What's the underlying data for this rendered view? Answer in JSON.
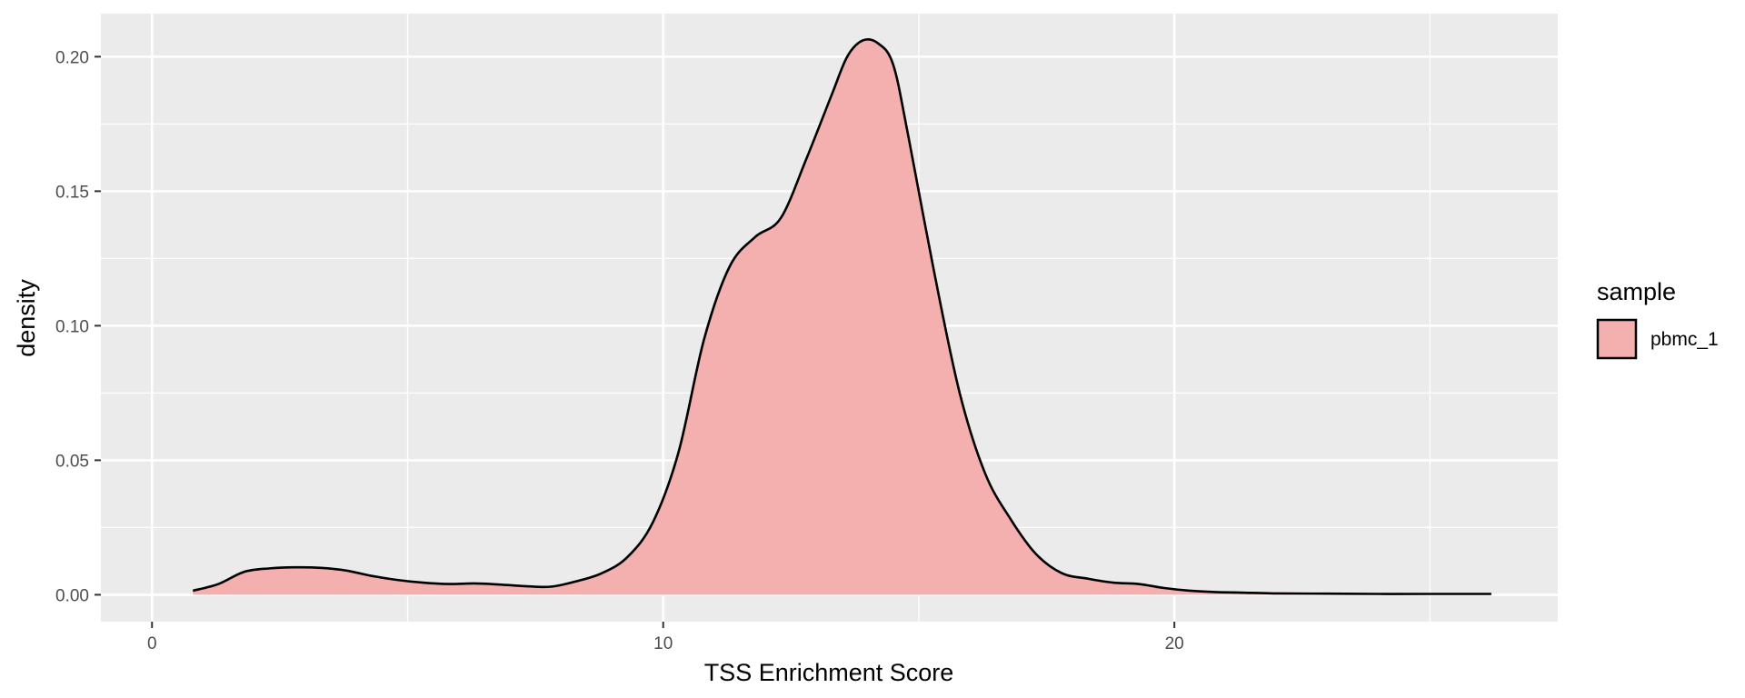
{
  "chart_data": {
    "type": "area",
    "subtype": "density",
    "title": "",
    "xlabel": "TSS Enrichment Score",
    "ylabel": "density",
    "xlim": [
      -1,
      27.5
    ],
    "ylim": [
      -0.01,
      0.216
    ],
    "x_ticks": [
      0,
      10,
      20
    ],
    "x_tick_labels": [
      "0",
      "10",
      "20"
    ],
    "y_ticks": [
      0.0,
      0.05,
      0.1,
      0.15,
      0.2
    ],
    "y_tick_labels": [
      "0.00",
      "0.05",
      "0.10",
      "0.15",
      "0.20"
    ],
    "panel_background": "#ebebeb",
    "grid": true,
    "grid_color": "#ffffff",
    "legend": {
      "title": "sample",
      "position": "right",
      "entries": [
        {
          "label": "pbmc_1",
          "color": "#f4b0ae"
        }
      ]
    },
    "series": [
      {
        "name": "pbmc_1",
        "fill": "#f4b0ae",
        "line_color": "#000000",
        "x": [
          0.8,
          1.3,
          1.8,
          2.3,
          2.8,
          3.3,
          3.8,
          4.3,
          4.8,
          5.3,
          5.8,
          6.3,
          6.8,
          7.3,
          7.8,
          8.3,
          8.8,
          9.3,
          9.8,
          10.3,
          10.8,
          11.3,
          11.8,
          12.3,
          12.8,
          13.3,
          13.6,
          13.9,
          14.2,
          14.5,
          14.8,
          15.3,
          15.8,
          16.3,
          16.8,
          17.3,
          17.8,
          18.3,
          18.8,
          19.3,
          19.8,
          20.3,
          20.8,
          21.3,
          22,
          23,
          24,
          25,
          26.2
        ],
        "y": [
          0.0015,
          0.004,
          0.0085,
          0.0098,
          0.0102,
          0.01,
          0.009,
          0.007,
          0.0055,
          0.0045,
          0.004,
          0.0042,
          0.0038,
          0.0032,
          0.003,
          0.005,
          0.008,
          0.014,
          0.027,
          0.053,
          0.095,
          0.122,
          0.133,
          0.14,
          0.162,
          0.186,
          0.2,
          0.206,
          0.205,
          0.197,
          0.17,
          0.12,
          0.075,
          0.045,
          0.028,
          0.015,
          0.008,
          0.006,
          0.0045,
          0.004,
          0.0025,
          0.0015,
          0.001,
          0.0008,
          0.0005,
          0.0004,
          0.0003,
          0.0003,
          0.0003
        ]
      }
    ]
  }
}
